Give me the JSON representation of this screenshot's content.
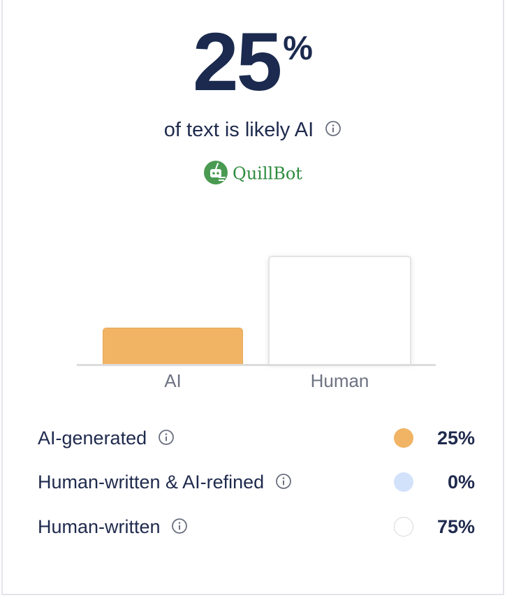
{
  "score": {
    "value": "25",
    "unit": "%"
  },
  "subtitle": "of text is likely AI",
  "brand": {
    "name": "QuillBot",
    "color": "#2e8b3e"
  },
  "chart_data": {
    "type": "bar",
    "categories": [
      "AI",
      "Human"
    ],
    "values": [
      25,
      75
    ],
    "ylim": [
      0,
      100
    ],
    "colors": [
      "#f1b464",
      "#ffffff"
    ],
    "title": "",
    "xlabel": "",
    "ylabel": ""
  },
  "legend": [
    {
      "label": "AI-generated",
      "value": "25%",
      "color": "#f1b464",
      "icon": "info-icon"
    },
    {
      "label": "Human-written & AI-refined",
      "value": "0%",
      "color": "#d3e2fb",
      "icon": "info-icon"
    },
    {
      "label": "Human-written",
      "value": "75%",
      "color": "#ffffff",
      "icon": "info-icon"
    }
  ]
}
